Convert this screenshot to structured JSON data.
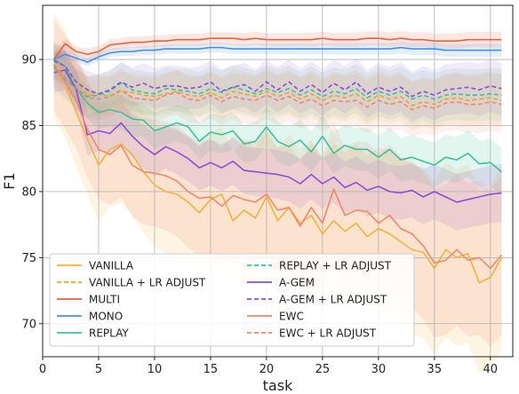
{
  "chart_data": {
    "type": "line",
    "xlabel": "task",
    "ylabel": "F1",
    "xlim": [
      0,
      42
    ],
    "ylim": [
      67.5,
      94.1
    ],
    "xticks": [
      0,
      5,
      10,
      15,
      20,
      25,
      30,
      35,
      40
    ],
    "yticks": [
      70,
      75,
      80,
      85,
      90
    ],
    "grid": true,
    "legend_position": "lower-left",
    "legend_columns": 2,
    "x": [
      1,
      2,
      3,
      4,
      5,
      6,
      7,
      8,
      9,
      10,
      11,
      12,
      13,
      14,
      15,
      16,
      17,
      18,
      19,
      20,
      21,
      22,
      23,
      24,
      25,
      26,
      27,
      28,
      29,
      30,
      31,
      32,
      33,
      34,
      35,
      36,
      37,
      38,
      39,
      40,
      41
    ],
    "series": [
      {
        "name": "VANILLA",
        "color": "#f2b33a",
        "dash": false,
        "values": [
          89.5,
          88.2,
          86,
          84,
          82,
          83.2,
          83.6,
          82.8,
          81.5,
          80.5,
          80,
          79.8,
          79.2,
          78.4,
          79.4,
          79.8,
          77.8,
          78.6,
          78,
          79.6,
          77.8,
          78.8,
          77.6,
          78.2,
          76.8,
          77.8,
          77,
          77.6,
          76.6,
          77.2,
          76.8,
          76.2,
          75.6,
          75.4,
          74.2,
          75.6,
          75,
          75.3,
          73.1,
          73.5,
          75
        ],
        "band": [
          4,
          7
        ]
      },
      {
        "name": "VANILLA + LR ADJUST",
        "color": "#e8a92a",
        "dash": true,
        "values": [
          89.9,
          89.2,
          88.3,
          87.3,
          87.4,
          87.2,
          87.6,
          87.5,
          87.3,
          87.2,
          87.4,
          87.6,
          87.3,
          87.2,
          87.5,
          87.1,
          87.6,
          87.4,
          87.2,
          87.6,
          87.2,
          87.5,
          87.0,
          87.4,
          86.9,
          87.3,
          87.1,
          87.4,
          86.8,
          87.3,
          87.0,
          87.2,
          86.5,
          86.8,
          86.6,
          87.0,
          87.1,
          86.9,
          87.0,
          87.1,
          86.9
        ],
        "band": [
          1.4,
          2
        ]
      },
      {
        "name": "MULTI",
        "color": "#f0603a",
        "dash": false,
        "values": [
          90,
          91.2,
          90.6,
          90.4,
          90.6,
          91.1,
          91.2,
          91.3,
          91.3,
          91.4,
          91.4,
          91.5,
          91.5,
          91.5,
          91.6,
          91.6,
          91.6,
          91.5,
          91.6,
          91.5,
          91.5,
          91.5,
          91.5,
          91.5,
          91.6,
          91.5,
          91.5,
          91.5,
          91.6,
          91.6,
          91.5,
          91.6,
          91.5,
          91.5,
          91.4,
          91.4,
          91.4,
          91.5,
          91.5,
          91.5,
          91.5
        ],
        "band": [
          0.4,
          0.6
        ]
      },
      {
        "name": "MONO",
        "color": "#4a90e2",
        "dash": false,
        "values": [
          90,
          90.4,
          90.1,
          89.8,
          90.2,
          90.5,
          90.6,
          90.6,
          90.7,
          90.7,
          90.8,
          90.8,
          90.8,
          90.8,
          90.9,
          90.9,
          90.8,
          90.8,
          90.8,
          90.8,
          90.8,
          90.8,
          90.8,
          90.8,
          90.8,
          90.8,
          90.8,
          90.8,
          90.8,
          90.8,
          90.8,
          90.9,
          90.8,
          90.8,
          90.8,
          90.7,
          90.7,
          90.7,
          90.7,
          90.7,
          90.7
        ],
        "band": [
          0.3,
          0.5
        ]
      },
      {
        "name": "REPLAY",
        "color": "#3cc29a",
        "dash": false,
        "values": [
          90,
          89.5,
          87.8,
          86.7,
          86,
          86.2,
          86,
          85.5,
          85.4,
          84.6,
          84.9,
          85.2,
          84.9,
          83.8,
          84.5,
          84.3,
          84.6,
          83.6,
          83.8,
          84.9,
          83.8,
          83.4,
          83.9,
          83,
          84.2,
          82.9,
          83.5,
          83.2,
          83.2,
          82.6,
          83.2,
          82.4,
          82.6,
          82.3,
          82,
          82.6,
          82.4,
          82.9,
          82.1,
          82.2,
          81.5
        ],
        "band": [
          1.2,
          1.8
        ]
      },
      {
        "name": "REPLAY + LR ADJUST",
        "color": "#3cc29a",
        "dash": true,
        "values": [
          89.4,
          88.5,
          87.8,
          87.2,
          87.3,
          87.6,
          88.2,
          87.7,
          87.5,
          87.4,
          87.8,
          87.7,
          87.6,
          87.4,
          87.8,
          87.5,
          87.9,
          87.7,
          87.4,
          87.8,
          87.5,
          87.8,
          87.3,
          87.7,
          87.2,
          87.6,
          87.4,
          87.8,
          87.1,
          87.6,
          87.3,
          87.6,
          87.0,
          87.3,
          87.0,
          87.3,
          87.4,
          87.3,
          87.3,
          87.4,
          87.3
        ],
        "band": [
          1.5,
          2
        ]
      },
      {
        "name": "A-GEM",
        "color": "#8a4fd8",
        "dash": false,
        "values": [
          89,
          89.2,
          87.7,
          84.3,
          84.6,
          84.4,
          85.2,
          84.2,
          83.4,
          82.8,
          83.4,
          83,
          82.5,
          81.8,
          82.2,
          81.8,
          82.3,
          81.6,
          81.5,
          81.4,
          81.3,
          81.1,
          80.6,
          81.3,
          80.6,
          81.1,
          80.3,
          80.7,
          80.1,
          80.4,
          80,
          79.9,
          80.1,
          79.6,
          80,
          79.6,
          79.2,
          79.4,
          79.6,
          79.8,
          79.9
        ],
        "band": [
          1.5,
          2.2
        ]
      },
      {
        "name": "A-GEM + LR ADJUST",
        "color": "#8a4fd8",
        "dash": true,
        "values": [
          89.9,
          89.5,
          88.3,
          87.7,
          87.4,
          87.7,
          88.3,
          87.9,
          88.2,
          87.8,
          88.0,
          88.0,
          87.8,
          87.9,
          88.3,
          87.6,
          87.9,
          88.1,
          87.6,
          88.3,
          87.7,
          88.3,
          87.6,
          88.1,
          87.5,
          88.2,
          87.7,
          88.3,
          87.4,
          87.9,
          87.6,
          87.9,
          87.2,
          87.6,
          87.3,
          87.7,
          87.8,
          87.9,
          87.7,
          88.0,
          87.8
        ],
        "band": [
          1.4,
          2
        ]
      },
      {
        "name": "EWC",
        "color": "#f2876a",
        "dash": false,
        "values": [
          89.6,
          88.3,
          86.9,
          84.7,
          83.2,
          82.8,
          83.5,
          82,
          81.5,
          81.4,
          81.2,
          80.8,
          80,
          79.5,
          79.6,
          78.9,
          79.7,
          79.4,
          79.2,
          79.8,
          78.6,
          78.8,
          77.4,
          78.8,
          77.6,
          80.2,
          78.2,
          78.6,
          78.5,
          77.6,
          78.2,
          77.2,
          76.8,
          75.9,
          74.6,
          74.8,
          75.6,
          74.8,
          75.0,
          74.2,
          75.2
        ],
        "band": [
          3.5,
          6
        ]
      },
      {
        "name": "EWC + LR ADJUST",
        "color": "#f2876a",
        "dash": true,
        "values": [
          89.6,
          88.7,
          87.7,
          87.1,
          87.0,
          87.2,
          87.7,
          87.1,
          87.0,
          86.9,
          87.3,
          87.5,
          87.0,
          86.9,
          87.3,
          86.8,
          87.2,
          87.0,
          86.9,
          87.3,
          86.9,
          87.2,
          86.7,
          87.0,
          86.5,
          86.9,
          86.8,
          86.9,
          86.4,
          86.9,
          86.6,
          86.8,
          86.2,
          86.5,
          86.3,
          86.7,
          86.8,
          86.6,
          86.6,
          86.8,
          86.6
        ],
        "band": [
          1.5,
          2.2
        ]
      }
    ]
  }
}
